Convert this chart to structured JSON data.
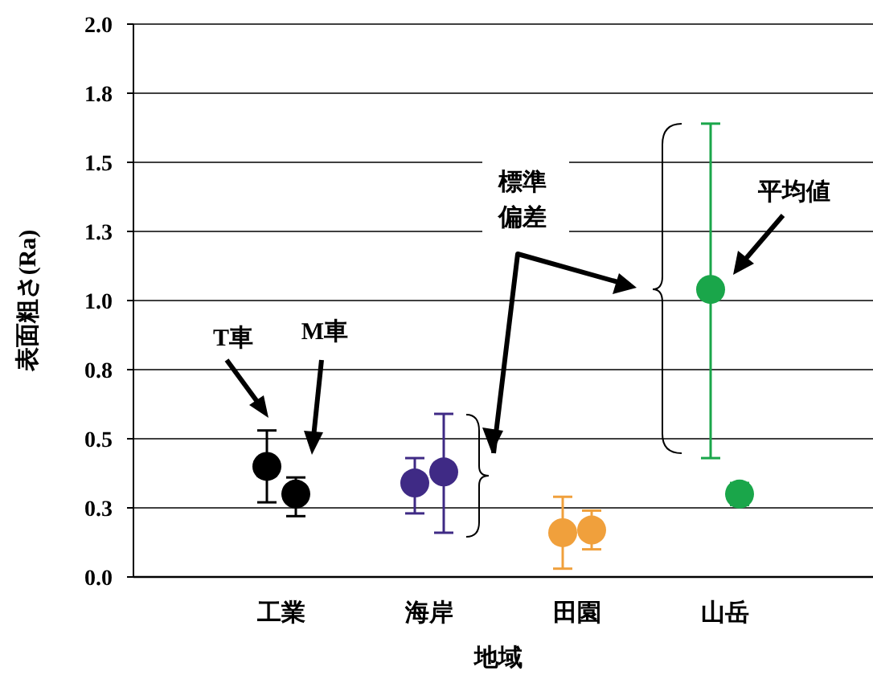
{
  "chart_data": {
    "type": "scatter",
    "xlabel": "地域",
    "ylabel": "表面粗さ(Ra)",
    "categories": [
      "工業",
      "海岸",
      "田園",
      "山岳"
    ],
    "series": [
      {
        "colors": [
          "#000000",
          "#3f2a85",
          "#f0a03c",
          "#1aa64a"
        ],
        "values": [
          0.4,
          0.34,
          0.16,
          1.04
        ],
        "errors": [
          [
            0.27,
            0.53
          ],
          [
            0.23,
            0.43
          ],
          [
            0.03,
            0.29
          ],
          [
            0.43,
            1.64
          ]
        ]
      },
      {
        "colors": [
          "#000000",
          "#3f2a85",
          "#f0a03c",
          "#1aa64a"
        ],
        "values": [
          0.3,
          0.38,
          0.17,
          0.3
        ],
        "errors": [
          [
            0.22,
            0.36
          ],
          [
            0.16,
            0.59
          ],
          [
            0.1,
            0.24
          ],
          [
            0.26,
            0.34
          ]
        ]
      }
    ],
    "ylim": [
      0,
      2
    ],
    "yticks": [
      {
        "value": 0,
        "label": "0.0"
      },
      {
        "value": 0.25,
        "label": "0.3"
      },
      0.5,
      {
        "value": 0.75,
        "label": "0.8"
      },
      {
        "value": 1,
        "label": "1.0"
      },
      {
        "value": 1.25,
        "label": "1.3"
      },
      1.5,
      {
        "value": 1.75,
        "label": "1.8"
      },
      {
        "value": 2,
        "label": "2.0"
      }
    ],
    "grid": "y",
    "marker": "circle",
    "annotations": [
      "T車",
      "M車",
      "標準",
      "偏差",
      "平均値"
    ]
  }
}
